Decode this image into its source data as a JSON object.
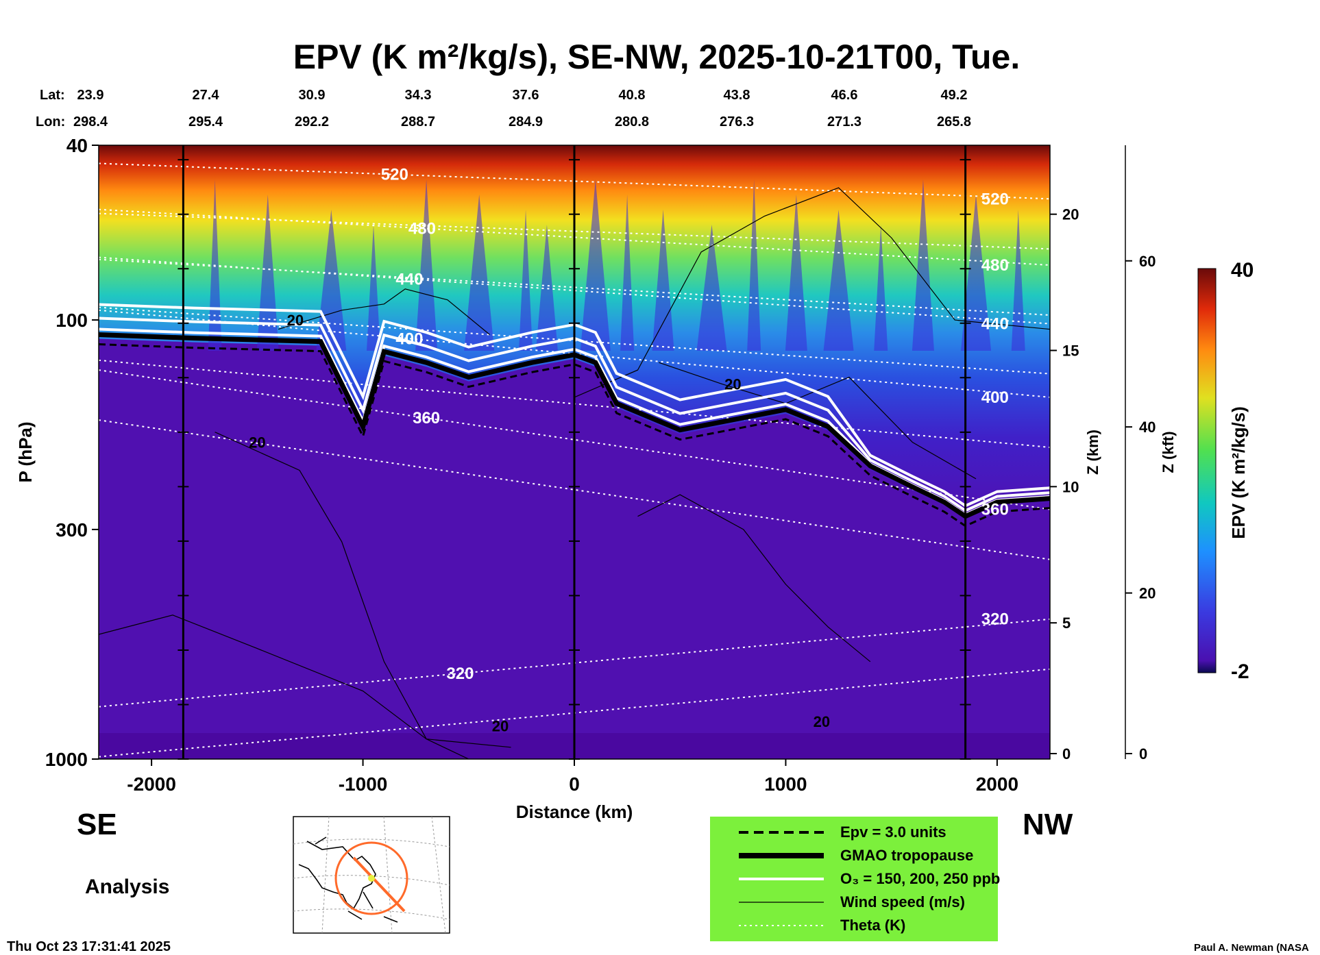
{
  "chart_data": {
    "type": "heatmap",
    "title": "EPV (K m²/kg/s), SE-NW, 2025-10-21T00, Tue.",
    "header": {
      "lat_label": "Lat:",
      "lon_label": "Lon:",
      "lat": [
        "23.9",
        "27.4",
        "30.9",
        "34.3",
        "37.6",
        "40.8",
        "43.8",
        "46.6",
        "49.2"
      ],
      "lon": [
        "298.4",
        "295.4",
        "292.2",
        "288.7",
        "284.9",
        "280.8",
        "276.3",
        "271.3",
        "265.8"
      ]
    },
    "xlabel": "Distance (km)",
    "ylabel": "P (hPa)",
    "xlim": [
      -2250,
      2250
    ],
    "ylim": [
      1000,
      40
    ],
    "y_scale": "log",
    "x_ticks": [
      "-2000",
      "-1000",
      "0",
      "1000",
      "2000"
    ],
    "x_tick_values": [
      -2000,
      -1000,
      0,
      1000,
      2000
    ],
    "y_ticks": [
      "40",
      "100",
      "300",
      "1000"
    ],
    "y_tick_values": [
      40,
      100,
      300,
      1000
    ],
    "z_km_label": "Z (km)",
    "z_km_ticks": [
      "0",
      "5",
      "10",
      "15",
      "20"
    ],
    "z_km_values": [
      0,
      5,
      10,
      15,
      20
    ],
    "z_kft_label": "Z (kft)",
    "z_kft_ticks": [
      "0",
      "20",
      "40",
      "60"
    ],
    "z_kft_values": [
      0,
      20,
      40,
      60
    ],
    "left_dir": "SE",
    "right_dir": "NW",
    "analysis_label": "Analysis",
    "timestamp": "Thu Oct 23 17:31:41 2025",
    "credit": "Paul A. Newman (NASA",
    "colorbar": {
      "label": "EPV (K m²/kg/s)",
      "min_label": "-2",
      "max_label": "40",
      "range": [
        -2,
        40
      ]
    },
    "vertical_markers_km": [
      -1850,
      0,
      1850
    ],
    "theta_contours": [
      {
        "label": "320",
        "values": [
          320
        ]
      },
      {
        "label": "360",
        "values": [
          360
        ]
      },
      {
        "label": "400",
        "values": [
          400
        ]
      },
      {
        "label": "440",
        "values": [
          440
        ]
      },
      {
        "label": "480",
        "values": [
          480
        ]
      },
      {
        "label": "520",
        "values": [
          520
        ]
      }
    ],
    "wind_labels": [
      "20",
      "20",
      "20",
      "20",
      "20"
    ],
    "tropopause": {
      "x": [
        -2250,
        -1800,
        -1200,
        -1000,
        -900,
        -700,
        -500,
        -200,
        0,
        100,
        200,
        500,
        1000,
        1200,
        1400,
        1600,
        1750,
        1850,
        2000,
        2250
      ],
      "p": [
        108,
        110,
        112,
        175,
        118,
        125,
        135,
        125,
        120,
        125,
        155,
        178,
        160,
        175,
        215,
        240,
        260,
        280,
        260,
        255
      ]
    },
    "legend": [
      {
        "label": "Epv = 3.0 units",
        "style": "dashed"
      },
      {
        "label": "GMAO tropopause",
        "style": "thick"
      },
      {
        "label": "O₃ = 150, 200, 250 ppb",
        "style": "white"
      },
      {
        "label": "Wind speed (m/s)",
        "style": "thin"
      },
      {
        "label": "Theta (K)",
        "style": "dotted"
      }
    ]
  }
}
